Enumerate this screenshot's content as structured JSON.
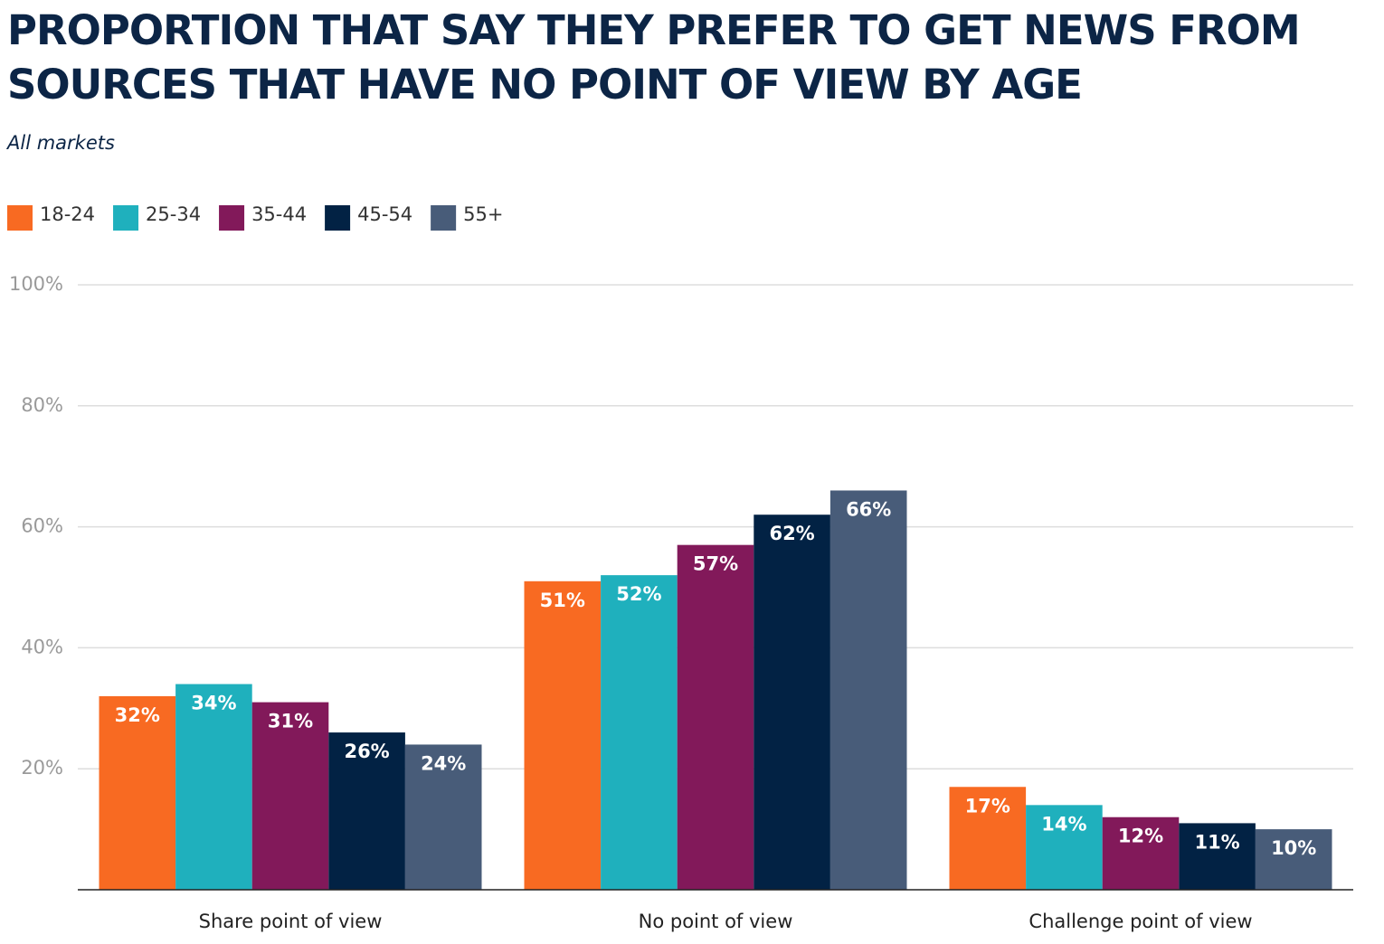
{
  "chart_data": {
    "type": "bar",
    "title": "PROPORTION THAT SAY THEY PREFER TO GET NEWS FROM SOURCES THAT HAVE NO POINT OF VIEW BY AGE",
    "subtitle": "All markets",
    "categories": [
      "Share point of view",
      "No point of view",
      "Challenge point of view"
    ],
    "series": [
      {
        "name": "18-24",
        "color": "#f86a22",
        "values": [
          32,
          51,
          17
        ],
        "value_labels": [
          "32%",
          "51%",
          "17%"
        ]
      },
      {
        "name": "25-34",
        "color": "#1fb0bd",
        "values": [
          34,
          52,
          14
        ],
        "value_labels": [
          "34%",
          "52%",
          "14%"
        ]
      },
      {
        "name": "35-44",
        "color": "#82195a",
        "values": [
          31,
          57,
          12
        ],
        "value_labels": [
          "31%",
          "57%",
          "12%"
        ]
      },
      {
        "name": "45-54",
        "color": "#022244",
        "values": [
          26,
          62,
          11
        ],
        "value_labels": [
          "26%",
          "62%",
          "11%"
        ]
      },
      {
        "name": "55+",
        "color": "#485c79",
        "values": [
          24,
          66,
          10
        ],
        "value_labels": [
          "24%",
          "66%",
          "10%"
        ]
      }
    ],
    "ylim": [
      0,
      100
    ],
    "yticks": [
      {
        "value": 20,
        "label": "20%"
      },
      {
        "value": 40,
        "label": "40%"
      },
      {
        "value": 60,
        "label": "60%"
      },
      {
        "value": 80,
        "label": "80%"
      },
      {
        "value": 100,
        "label": "100%"
      }
    ],
    "grid": true
  }
}
